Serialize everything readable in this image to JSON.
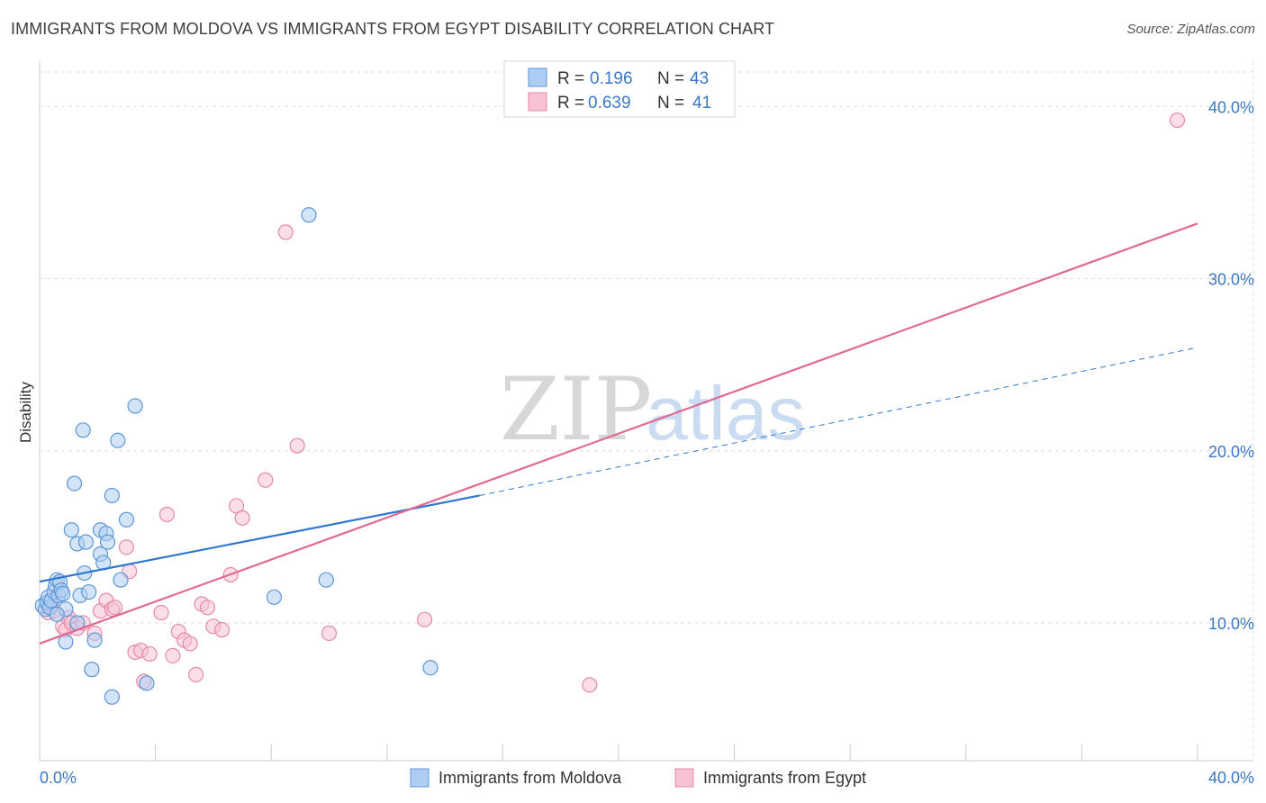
{
  "title": "IMMIGRANTS FROM MOLDOVA VS IMMIGRANTS FROM EGYPT DISABILITY CORRELATION CHART",
  "source": "Source: ZipAtlas.com",
  "watermark": {
    "part1": "ZIP",
    "part2": "atlas"
  },
  "colors": {
    "moldova_fill": "#aecdf2",
    "moldova_stroke": "#5e97d6",
    "moldova_line": "#2f78cf",
    "egypt_fill": "#f7c3d3",
    "egypt_stroke": "#e58aa8",
    "egypt_line": "#e06a93",
    "grid": "#dddddd",
    "axis_text": "#3b78c4"
  },
  "legend": {
    "rows": [
      {
        "r_label": "R =",
        "r_value": "0.196",
        "n_label": "N =",
        "n_value": "43"
      },
      {
        "r_label": "R =",
        "r_value": "0.639",
        "n_label": "N =",
        "n_value": "41"
      }
    ]
  },
  "chart_data": {
    "type": "scatter",
    "title": "IMMIGRANTS FROM MOLDOVA VS IMMIGRANTS FROM EGYPT DISABILITY CORRELATION CHART",
    "xlabel": "",
    "ylabel": "Disability",
    "xlim": [
      0,
      40
    ],
    "ylim": [
      2,
      42
    ],
    "x_tick_labels": {
      "left": "0.0%",
      "right": "40.0%"
    },
    "y_ticks": [
      10,
      20,
      30,
      40
    ],
    "y_tick_labels": [
      "10.0%",
      "20.0%",
      "30.0%",
      "40.0%"
    ],
    "series": [
      {
        "name": "Immigrants from Moldova",
        "R": 0.196,
        "N": 43,
        "trend": {
          "x0": 0,
          "y0": 12.4,
          "x1": 15.2,
          "y1": 17.4,
          "dashed_to_x": 40,
          "dashed_to_y": 26.0
        },
        "points": [
          [
            0.1,
            11.0
          ],
          [
            0.2,
            10.8
          ],
          [
            0.25,
            11.2
          ],
          [
            0.3,
            11.5
          ],
          [
            0.35,
            10.9
          ],
          [
            0.4,
            11.3
          ],
          [
            0.5,
            11.8
          ],
          [
            0.55,
            12.2
          ],
          [
            0.6,
            12.5
          ],
          [
            0.65,
            11.6
          ],
          [
            0.7,
            12.4
          ],
          [
            0.75,
            11.9
          ],
          [
            0.8,
            11.7
          ],
          [
            0.9,
            10.8
          ],
          [
            0.9,
            8.9
          ],
          [
            1.1,
            15.4
          ],
          [
            1.2,
            18.1
          ],
          [
            1.3,
            14.6
          ],
          [
            1.4,
            11.6
          ],
          [
            1.5,
            21.2
          ],
          [
            1.55,
            12.9
          ],
          [
            1.6,
            14.7
          ],
          [
            1.7,
            11.8
          ],
          [
            1.8,
            7.3
          ],
          [
            1.9,
            9.0
          ],
          [
            2.1,
            14.0
          ],
          [
            2.1,
            15.4
          ],
          [
            2.2,
            13.5
          ],
          [
            2.3,
            15.2
          ],
          [
            2.35,
            14.7
          ],
          [
            2.5,
            17.4
          ],
          [
            2.5,
            5.7
          ],
          [
            2.7,
            20.6
          ],
          [
            2.8,
            12.5
          ],
          [
            3.0,
            16.0
          ],
          [
            3.3,
            22.6
          ],
          [
            3.7,
            6.5
          ],
          [
            8.1,
            11.5
          ],
          [
            9.3,
            33.7
          ],
          [
            9.9,
            12.5
          ],
          [
            13.5,
            7.4
          ],
          [
            0.6,
            10.5
          ],
          [
            1.3,
            10.0
          ]
        ]
      },
      {
        "name": "Immigrants from Egypt",
        "R": 0.639,
        "N": 41,
        "trend": {
          "x0": 0,
          "y0": 8.8,
          "x1": 40,
          "y1": 33.2
        },
        "points": [
          [
            0.3,
            10.6
          ],
          [
            0.4,
            11.2
          ],
          [
            0.5,
            10.7
          ],
          [
            0.8,
            9.8
          ],
          [
            0.9,
            9.6
          ],
          [
            1.0,
            10.3
          ],
          [
            1.1,
            10.0
          ],
          [
            1.3,
            9.7
          ],
          [
            1.5,
            10.0
          ],
          [
            1.9,
            9.4
          ],
          [
            2.1,
            10.7
          ],
          [
            2.3,
            11.3
          ],
          [
            2.5,
            10.8
          ],
          [
            2.6,
            10.9
          ],
          [
            3.0,
            14.4
          ],
          [
            3.1,
            13.0
          ],
          [
            3.3,
            8.3
          ],
          [
            3.5,
            8.4
          ],
          [
            3.6,
            6.6
          ],
          [
            3.8,
            8.2
          ],
          [
            4.2,
            10.6
          ],
          [
            4.4,
            16.3
          ],
          [
            4.6,
            8.1
          ],
          [
            4.8,
            9.5
          ],
          [
            5.0,
            9.0
          ],
          [
            5.2,
            8.8
          ],
          [
            5.4,
            7.0
          ],
          [
            5.6,
            11.1
          ],
          [
            5.8,
            10.9
          ],
          [
            6.0,
            9.8
          ],
          [
            6.3,
            9.6
          ],
          [
            6.6,
            12.8
          ],
          [
            6.8,
            16.8
          ],
          [
            7.0,
            16.1
          ],
          [
            7.8,
            18.3
          ],
          [
            8.5,
            32.7
          ],
          [
            8.9,
            20.3
          ],
          [
            10.0,
            9.4
          ],
          [
            13.3,
            10.2
          ],
          [
            19.0,
            6.4
          ],
          [
            39.3,
            39.2
          ]
        ]
      }
    ]
  }
}
